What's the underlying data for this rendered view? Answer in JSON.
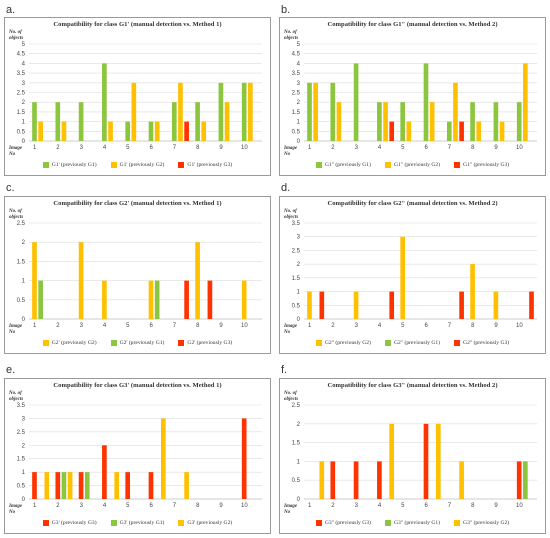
{
  "colors": {
    "green": "#8CC63F",
    "yellow": "#FFC000",
    "red": "#FF3300"
  },
  "common": {
    "ylabel": "No. of objects",
    "xlabel": "Image No"
  },
  "panels": [
    {
      "letter": "a."
    },
    {
      "letter": "b."
    },
    {
      "letter": "c."
    },
    {
      "letter": "d."
    },
    {
      "letter": "e."
    },
    {
      "letter": "f."
    }
  ],
  "chart_data": [
    {
      "type": "bar",
      "title": "Compatibility for class G1' (manual detection vs. Method 1)",
      "ylabel": "No. of objects",
      "xlabel": "Image No",
      "categories": [
        "1",
        "2",
        "3",
        "4",
        "5",
        "6",
        "7",
        "8",
        "9",
        "10"
      ],
      "ylim": [
        0,
        5
      ],
      "yticks": [
        0,
        0.5,
        1,
        1.5,
        2,
        2.5,
        3,
        3.5,
        4,
        4.5,
        5
      ],
      "series": [
        {
          "name": "G1' (previously G1)",
          "color": "green",
          "values": [
            2,
            2,
            2,
            4,
            1,
            1,
            2,
            2,
            3,
            3
          ]
        },
        {
          "name": "G1' (previously G2)",
          "color": "yellow",
          "values": [
            1,
            1,
            0,
            1,
            3,
            1,
            3,
            1,
            2,
            3
          ]
        },
        {
          "name": "G1' (previously G3)",
          "color": "red",
          "values": [
            0,
            0,
            0,
            0,
            0,
            0,
            1,
            0,
            0,
            0
          ]
        }
      ]
    },
    {
      "type": "bar",
      "title": "Compatibility for class G1\" (manual detection vs. Method 2)",
      "ylabel": "No. of objects",
      "xlabel": "Image No",
      "categories": [
        "1",
        "2",
        "3",
        "4",
        "5",
        "6",
        "7",
        "8",
        "9",
        "10"
      ],
      "ylim": [
        0,
        5
      ],
      "yticks": [
        0,
        0.5,
        1,
        1.5,
        2,
        2.5,
        3,
        3.5,
        4,
        4.5,
        5
      ],
      "series": [
        {
          "name": "G1\" (previously G1)",
          "color": "green",
          "values": [
            3,
            3,
            4,
            2,
            2,
            4,
            1,
            2,
            2,
            2
          ]
        },
        {
          "name": "G1\" (previously G2)",
          "color": "yellow",
          "values": [
            3,
            2,
            0,
            2,
            1,
            2,
            3,
            1,
            1,
            4
          ]
        },
        {
          "name": "G1\" (previously G3)",
          "color": "red",
          "values": [
            0,
            0,
            0,
            1,
            0,
            0,
            1,
            0,
            0,
            0
          ]
        }
      ]
    },
    {
      "type": "bar",
      "title": "Compatibility for class G2' (manual detection vs. Method 1)",
      "ylabel": "No. of objects",
      "xlabel": "Image No",
      "categories": [
        "1",
        "2",
        "3",
        "4",
        "5",
        "6",
        "7",
        "8",
        "9",
        "10"
      ],
      "ylim": [
        0,
        2.5
      ],
      "yticks": [
        0,
        0.5,
        1,
        1.5,
        2,
        2.5
      ],
      "series": [
        {
          "name": "G2' (previously G2)",
          "color": "yellow",
          "values": [
            2,
            0,
            2,
            1,
            0,
            1,
            0,
            2,
            0,
            1
          ]
        },
        {
          "name": "G2' (previously G1)",
          "color": "green",
          "values": [
            1,
            0,
            0,
            0,
            0,
            1,
            0,
            0,
            0,
            0
          ]
        },
        {
          "name": "G2' (previously G3)",
          "color": "red",
          "values": [
            0,
            0,
            0,
            0,
            0,
            0,
            1,
            1,
            0,
            0
          ]
        }
      ]
    },
    {
      "type": "bar",
      "title": "Compatibility for class G2\" (manual detection vs. Method 2)",
      "ylabel": "No. of objects",
      "xlabel": "Image No",
      "categories": [
        "1",
        "2",
        "3",
        "4",
        "5",
        "6",
        "7",
        "8",
        "9",
        "10"
      ],
      "ylim": [
        0,
        3.5
      ],
      "yticks": [
        0,
        0.5,
        1,
        1.5,
        2,
        2.5,
        3,
        3.5
      ],
      "series": [
        {
          "name": "G2\" (previously G2)",
          "color": "yellow",
          "values": [
            1,
            0,
            1,
            0,
            3,
            0,
            0,
            2,
            1,
            0
          ]
        },
        {
          "name": "G2\" (previously G1)",
          "color": "green",
          "values": [
            0,
            0,
            0,
            0,
            0,
            0,
            0,
            0,
            0,
            0
          ]
        },
        {
          "name": "G2\" (previously G3)",
          "color": "red",
          "values": [
            1,
            0,
            0,
            1,
            0,
            0,
            1,
            0,
            0,
            1
          ]
        }
      ]
    },
    {
      "type": "bar",
      "title": "Compatibility for class G3' (manual detection vs. Method 1)",
      "ylabel": "No. of objects",
      "xlabel": "Image No",
      "categories": [
        "1",
        "2",
        "3",
        "4",
        "5",
        "6",
        "7",
        "8",
        "9",
        "10"
      ],
      "ylim": [
        0,
        3.5
      ],
      "yticks": [
        0,
        0.5,
        1,
        1.5,
        2,
        2.5,
        3,
        3.5
      ],
      "series": [
        {
          "name": "G3' (previously G3)",
          "color": "red",
          "values": [
            1,
            1,
            1,
            2,
            1,
            1,
            0,
            0,
            0,
            3
          ]
        },
        {
          "name": "G3' (previously G1)",
          "color": "green",
          "values": [
            0,
            1,
            1,
            0,
            0,
            0,
            0,
            0,
            0,
            0
          ]
        },
        {
          "name": "G3' (previously G2)",
          "color": "yellow",
          "values": [
            1,
            1,
            0,
            1,
            0,
            3,
            1,
            0,
            0,
            0
          ]
        }
      ]
    },
    {
      "type": "bar",
      "title": "Compatibility for class G3\" (manual detection vs. Method 2)",
      "ylabel": "No. of objects",
      "xlabel": "Image No",
      "categories": [
        "1",
        "2",
        "3",
        "4",
        "5",
        "6",
        "7",
        "8",
        "9",
        "10"
      ],
      "ylim": [
        0,
        2.5
      ],
      "yticks": [
        0,
        0.5,
        1,
        1.5,
        2,
        2.5
      ],
      "series": [
        {
          "name": "G3\" (previously G3)",
          "color": "red",
          "values": [
            0,
            1,
            1,
            1,
            0,
            2,
            0,
            0,
            0,
            1
          ]
        },
        {
          "name": "G3\" (previously G1)",
          "color": "green",
          "values": [
            0,
            0,
            0,
            0,
            0,
            0,
            0,
            0,
            0,
            1
          ]
        },
        {
          "name": "G3\" (previously G2)",
          "color": "yellow",
          "values": [
            1,
            0,
            0,
            2,
            0,
            2,
            1,
            0,
            0,
            0
          ]
        }
      ]
    }
  ]
}
